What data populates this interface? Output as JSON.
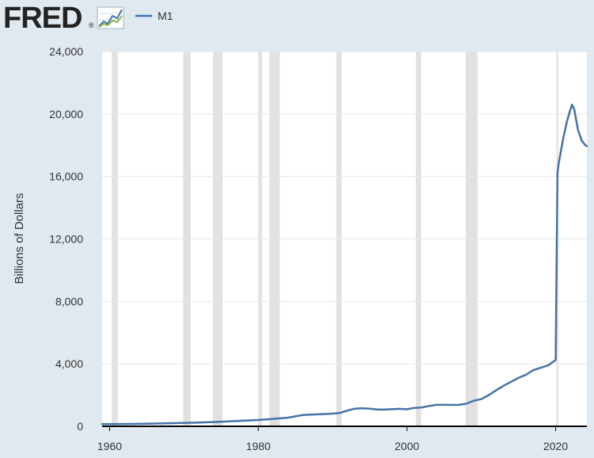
{
  "header": {
    "logo_text": "FRED",
    "logo_mark": "®",
    "logo_icon": "trend-line-icon"
  },
  "colors": {
    "background": "#e1e9f0",
    "plot_background": "#ffffff",
    "line": "#4572a7",
    "recession_shading": "#e1e1e1",
    "gridline": "#e6e6e6",
    "baseline": "#000000",
    "text": "#333333"
  },
  "chart_data": {
    "type": "line",
    "title": "",
    "xlabel": "",
    "ylabel": "Billions of Dollars",
    "xlim": [
      1959,
      2024.2
    ],
    "ylim": [
      0,
      24000
    ],
    "x_ticks": [
      1960,
      1980,
      2000,
      2020
    ],
    "y_ticks": [
      0,
      4000,
      8000,
      12000,
      16000,
      20000,
      24000
    ],
    "y_tick_labels": [
      "0",
      "4,000",
      "8,000",
      "12,000",
      "16,000",
      "20,000",
      "24,000"
    ],
    "grid": "horizontal",
    "legend": "top-left",
    "recessions": [
      [
        1960.3,
        1961.1
      ],
      [
        1969.9,
        1970.9
      ],
      [
        1973.9,
        1975.2
      ],
      [
        1980.0,
        1980.5
      ],
      [
        1981.5,
        1982.9
      ],
      [
        1990.5,
        1991.2
      ],
      [
        2001.2,
        2001.9
      ],
      [
        2007.9,
        2009.5
      ],
      [
        2020.1,
        2020.35
      ]
    ],
    "series": [
      {
        "name": "M1",
        "x": [
          1959,
          1962,
          1965,
          1968,
          1971,
          1974,
          1977,
          1980,
          1982,
          1984,
          1986,
          1987,
          1989,
          1990,
          1991,
          1992,
          1993,
          1994,
          1995,
          1996,
          1997,
          1998,
          1999,
          2000,
          2001,
          2002,
          2003,
          2004,
          2005,
          2006,
          2007,
          2008,
          2008.8,
          2009,
          2010,
          2011,
          2012,
          2013,
          2014,
          2015,
          2016,
          2017,
          2018,
          2019,
          2020.0,
          2020.25,
          2020.4,
          2021.0,
          2021.5,
          2022.0,
          2022.2,
          2022.5,
          2023.0,
          2023.5,
          2024.0,
          2024.2
        ],
        "values": [
          140,
          145,
          167,
          197,
          228,
          274,
          335,
          408,
          475,
          552,
          724,
          750,
          787,
          810,
          860,
          1010,
          1130,
          1150,
          1127,
          1080,
          1073,
          1095,
          1122,
          1090,
          1180,
          1210,
          1305,
          1375,
          1375,
          1370,
          1374,
          1444,
          1600,
          1640,
          1740,
          2000,
          2310,
          2600,
          2850,
          3100,
          3300,
          3600,
          3750,
          3900,
          4250,
          16200,
          16800,
          18400,
          19500,
          20300,
          20600,
          20300,
          19000,
          18300,
          18000,
          17950
        ]
      }
    ]
  }
}
